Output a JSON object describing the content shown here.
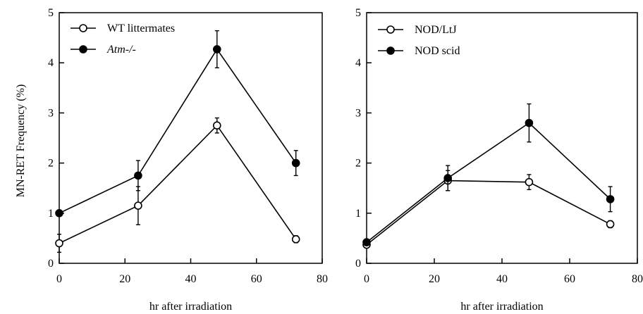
{
  "figure": {
    "ylabel": "MN-RET Frequency (%)"
  },
  "chart_data": [
    {
      "type": "line",
      "xlabel": "hr after irradiation",
      "ylabel": "MN-RET Frequency (%)",
      "xlim": [
        0,
        80
      ],
      "ylim": [
        0,
        5
      ],
      "xticks": [
        0,
        20,
        40,
        60,
        80
      ],
      "yticks": [
        0,
        1,
        2,
        3,
        4,
        5
      ],
      "legend_position": "top-left",
      "series": [
        {
          "name": "WT littermates",
          "marker": "open-circle",
          "x": [
            0,
            24,
            48,
            72
          ],
          "y": [
            0.4,
            1.15,
            2.75,
            0.48
          ],
          "err": [
            0.18,
            0.38,
            0.15,
            0.07
          ]
        },
        {
          "name": "Atm-/-",
          "marker": "filled-circle",
          "italic": true,
          "x": [
            0,
            24,
            48,
            72
          ],
          "y": [
            1.0,
            1.75,
            4.27,
            2.0
          ],
          "err": [
            0.05,
            0.3,
            0.37,
            0.25
          ]
        }
      ]
    },
    {
      "type": "line",
      "xlabel": "hr after irradiation",
      "ylabel": "",
      "xlim": [
        0,
        80
      ],
      "ylim": [
        0,
        5
      ],
      "xticks": [
        0,
        20,
        40,
        60,
        80
      ],
      "yticks": [
        0,
        1,
        2,
        3,
        4,
        5
      ],
      "legend_position": "top-left",
      "series": [
        {
          "name": "NOD/LtJ",
          "marker": "open-circle",
          "x": [
            0,
            24,
            48,
            72
          ],
          "y": [
            0.37,
            1.65,
            1.62,
            0.78
          ],
          "err": [
            0.05,
            0.2,
            0.15,
            0.07
          ]
        },
        {
          "name": "NOD scid",
          "marker": "filled-circle",
          "x": [
            0,
            24,
            48,
            72
          ],
          "y": [
            0.42,
            1.7,
            2.8,
            1.28
          ],
          "err": [
            0.05,
            0.25,
            0.38,
            0.25
          ]
        }
      ]
    }
  ]
}
